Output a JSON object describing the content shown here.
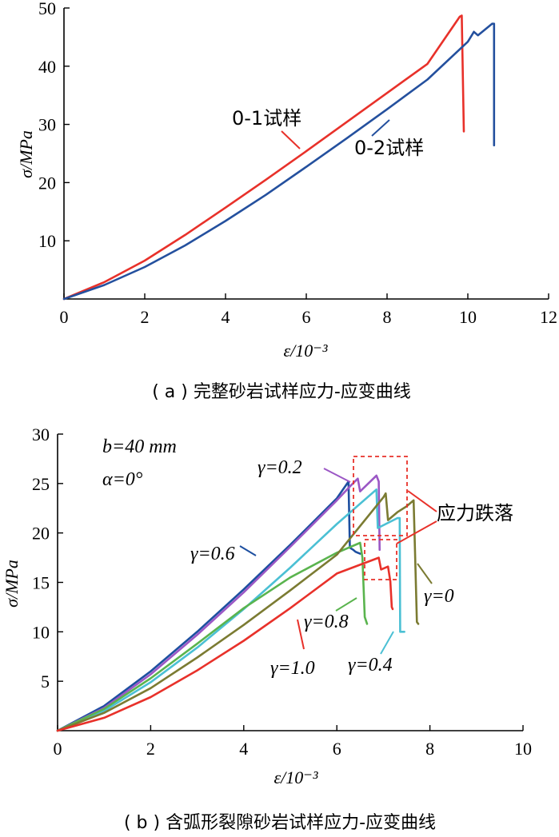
{
  "chart_data": [
    {
      "type": "line",
      "caption": "( a ) 完整砂岩试样应力-应变曲线",
      "xlabel": "ε/10⁻³",
      "ylabel": "σ/MPa",
      "xlim": [
        0,
        12
      ],
      "ylim": [
        0,
        50
      ],
      "xticks": [
        "0",
        "2",
        "4",
        "6",
        "8",
        "10",
        "12"
      ],
      "yticks": [
        "10",
        "20",
        "30",
        "40",
        "50"
      ],
      "series": [
        {
          "name": "0-1试样",
          "color": "#e8312a",
          "x": [
            0,
            1,
            2,
            3,
            4,
            5,
            6,
            7,
            8,
            9,
            9.8,
            9.85,
            9.9
          ],
          "y": [
            0,
            2.9,
            6.6,
            11,
            15.7,
            20.5,
            25.4,
            30.4,
            35.4,
            40.4,
            48.5,
            48.7,
            28.8
          ]
        },
        {
          "name": "0-2试样",
          "color": "#24509e",
          "x": [
            0,
            1,
            2,
            3,
            4,
            5,
            6,
            7,
            8,
            9,
            10,
            10.15,
            10.25,
            10.6,
            10.65,
            10.65
          ],
          "y": [
            0,
            2.4,
            5.5,
            9.2,
            13.4,
            17.9,
            22.7,
            27.6,
            32.6,
            37.7,
            44.2,
            45.9,
            45.3,
            47.3,
            47.3,
            26.4
          ]
        }
      ],
      "annotations": [
        "0-1试样",
        "0-2试样"
      ]
    },
    {
      "type": "line",
      "caption": "( b ) 含弧形裂隙砂岩试样应力-应变曲线",
      "xlabel": "ε/10⁻³",
      "ylabel": "σ/MPa",
      "xlim": [
        0,
        10
      ],
      "ylim": [
        0,
        30
      ],
      "xticks": [
        "0",
        "2",
        "4",
        "6",
        "8",
        "10"
      ],
      "yticks": [
        "5",
        "10",
        "15",
        "20",
        "25",
        "30"
      ],
      "params": [
        "b=40 mm",
        "α=0°"
      ],
      "drop_label": "应力跌落",
      "series": [
        {
          "name": "γ=0.6",
          "color": "#1d4fa0",
          "x": [
            0,
            1,
            2,
            3,
            4,
            5,
            6,
            6.25,
            6.28,
            6.35,
            6.4,
            6.45,
            6.5
          ],
          "y": [
            0,
            2.5,
            6.0,
            10.0,
            14.3,
            18.8,
            23.5,
            25.2,
            18.5,
            18.3,
            18.1,
            18.0,
            17.9
          ]
        },
        {
          "name": "γ=0.2",
          "color": "#9b57c5",
          "x": [
            0,
            1,
            2,
            3,
            4,
            5,
            6,
            6.3,
            6.45,
            6.5,
            6.85,
            6.9,
            6.92
          ],
          "y": [
            0,
            2.3,
            5.7,
            9.7,
            14.0,
            18.6,
            23.3,
            24.8,
            25.5,
            24.2,
            25.8,
            25.2,
            18.3
          ]
        },
        {
          "name": "γ=0.4",
          "color": "#4bc0d4",
          "x": [
            0,
            1,
            2,
            3,
            4,
            5,
            6,
            6.85,
            6.88,
            7.3,
            7.35,
            7.36,
            7.45
          ],
          "y": [
            0,
            2.0,
            4.9,
            8.4,
            12.3,
            16.5,
            20.9,
            24.4,
            20.5,
            21.5,
            21.5,
            10.0,
            10.0
          ]
        },
        {
          "name": "γ=0.8",
          "color": "#5ab44e",
          "x": [
            0,
            1,
            2,
            3,
            4,
            5,
            6,
            6.5,
            6.55,
            6.6,
            6.65
          ],
          "y": [
            0,
            2.2,
            5.3,
            8.8,
            12.4,
            15.5,
            18.0,
            19.0,
            17.5,
            11.5,
            10.8
          ]
        },
        {
          "name": "γ=0",
          "color": "#7b7b32",
          "x": [
            0,
            1,
            2,
            3,
            4,
            5,
            6,
            7,
            7.05,
            7.1,
            7.3,
            7.5,
            7.65,
            7.68,
            7.72,
            7.75
          ],
          "y": [
            0,
            1.8,
            4.3,
            7.4,
            10.7,
            14.2,
            17.8,
            23.6,
            24.0,
            21.3,
            22.1,
            22.7,
            23.3,
            18.0,
            11.0,
            10.8
          ]
        },
        {
          "name": "γ=1.0",
          "color": "#e8312a",
          "x": [
            0,
            1,
            2,
            3,
            4,
            5,
            6,
            6.9,
            6.95,
            7.1,
            7.15,
            7.18,
            7.2
          ],
          "y": [
            0,
            1.3,
            3.4,
            6.1,
            9.1,
            12.4,
            15.9,
            17.5,
            16.3,
            16.6,
            15.1,
            12.5,
            12.3
          ]
        }
      ]
    }
  ]
}
